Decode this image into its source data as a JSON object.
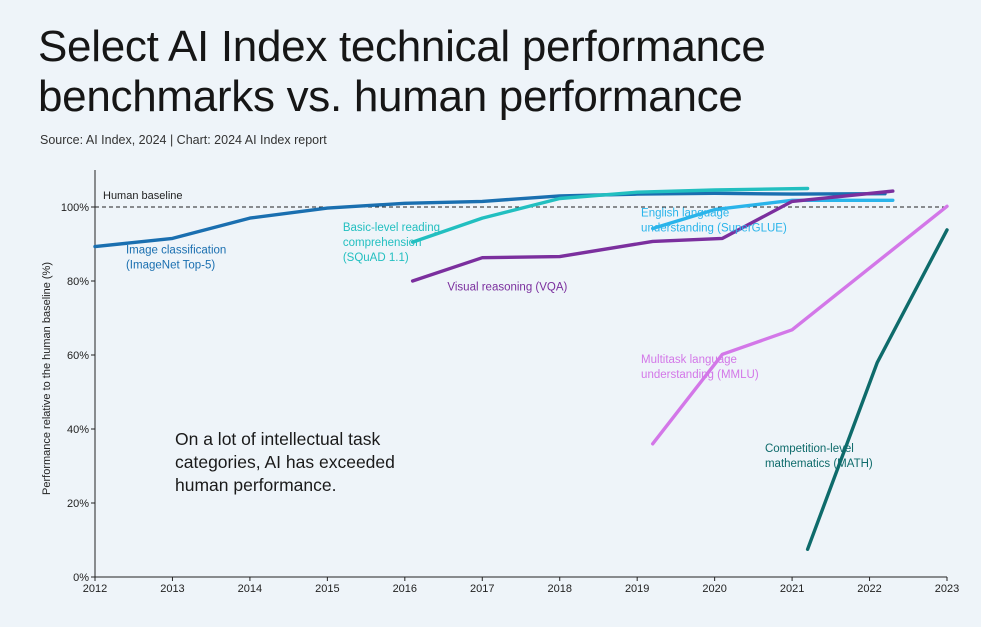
{
  "header": {
    "title_line1": "Select AI Index technical performance",
    "title_line2": "benchmarks vs. human performance",
    "source": "Source: AI Index, 2024 | Chart: 2024 AI Index report"
  },
  "annotation": {
    "line1": "On a lot of intellectual task",
    "line2": "categories, AI has exceeded",
    "line3": "human performance."
  },
  "chart_data": {
    "type": "line",
    "title": "Select AI Index technical performance benchmarks vs. human performance",
    "ylabel": "Performance relative to the human baseline (%)",
    "xlabel": "",
    "xlim": [
      2012,
      2023
    ],
    "ylim": [
      0,
      110
    ],
    "xticks": [
      "2012",
      "2013",
      "2014",
      "2015",
      "2016",
      "2017",
      "2018",
      "2019",
      "2020",
      "2021",
      "2022",
      "2023"
    ],
    "yticks": [
      {
        "value": 0,
        "label": "0%"
      },
      {
        "value": 20,
        "label": "20%"
      },
      {
        "value": 40,
        "label": "40%"
      },
      {
        "value": 60,
        "label": "60%"
      },
      {
        "value": 80,
        "label": "80%"
      },
      {
        "value": 100,
        "label": "100%"
      }
    ],
    "baseline": {
      "value": 100,
      "label": "Human baseline"
    },
    "grid": false,
    "series": [
      {
        "name": "Image classification (ImageNet Top-5)",
        "label_lines": [
          "Image classification",
          "(ImageNet Top-5)"
        ],
        "label_anchor": [
          2012.4,
          87.5
        ],
        "color": "#1a6fb0",
        "points": [
          [
            2012,
            89.3
          ],
          [
            2013,
            91.5
          ],
          [
            2014,
            97
          ],
          [
            2015,
            99.7
          ],
          [
            2016,
            101
          ],
          [
            2017,
            101.5
          ],
          [
            2018,
            103
          ],
          [
            2019,
            103.5
          ],
          [
            2020,
            103.7
          ],
          [
            2021,
            103.5
          ],
          [
            2022.2,
            103.6
          ]
        ]
      },
      {
        "name": "Basic-level reading comprehension (SQuAD 1.1)",
        "label_lines": [
          "Basic-level reading",
          "comprehension",
          "(SQuAD 1.1)"
        ],
        "label_anchor": [
          2015.2,
          93.5
        ],
        "color": "#22bfc0",
        "points": [
          [
            2016.1,
            90.5
          ],
          [
            2017,
            97
          ],
          [
            2018,
            102.3
          ],
          [
            2019,
            104
          ],
          [
            2020,
            104.6
          ],
          [
            2021.2,
            105
          ]
        ]
      },
      {
        "name": "English language understanding (SuperGLUE)",
        "label_lines": [
          "English language",
          "understanding (SuperGLUE)"
        ],
        "label_anchor": [
          2019.05,
          97.5
        ],
        "color": "#2ab4ea",
        "points": [
          [
            2019.2,
            94.2
          ],
          [
            2020,
            99.3
          ],
          [
            2021,
            101.8
          ],
          [
            2022.3,
            101.8
          ]
        ]
      },
      {
        "name": "Visual reasoning (VQA)",
        "label_lines": [
          "Visual reasoning (VQA)"
        ],
        "label_anchor": [
          2016.55,
          77.4
        ],
        "color": "#7b2f9e",
        "points": [
          [
            2016.1,
            80
          ],
          [
            2017,
            86.3
          ],
          [
            2018,
            86.6
          ],
          [
            2019.2,
            90.7
          ],
          [
            2020.1,
            91.5
          ],
          [
            2021,
            101.5
          ],
          [
            2022.3,
            104.3
          ]
        ]
      },
      {
        "name": "Multitask language understanding (MMLU)",
        "label_lines": [
          "Multitask language",
          "understanding (MMLU)"
        ],
        "label_anchor": [
          2019.05,
          57.8
        ],
        "color": "#d377e8",
        "points": [
          [
            2019.2,
            36
          ],
          [
            2020.1,
            60.2
          ],
          [
            2021,
            66.8
          ],
          [
            2023,
            100.2
          ]
        ]
      },
      {
        "name": "Competition-level mathematics (MATH)",
        "label_lines": [
          "Competition-level",
          "mathematics (MATH)"
        ],
        "label_anchor": [
          2020.65,
          33.8
        ],
        "color": "#0e6b6b",
        "points": [
          [
            2021.2,
            7.5
          ],
          [
            2022.1,
            58
          ],
          [
            2023,
            93.8
          ]
        ]
      }
    ]
  }
}
